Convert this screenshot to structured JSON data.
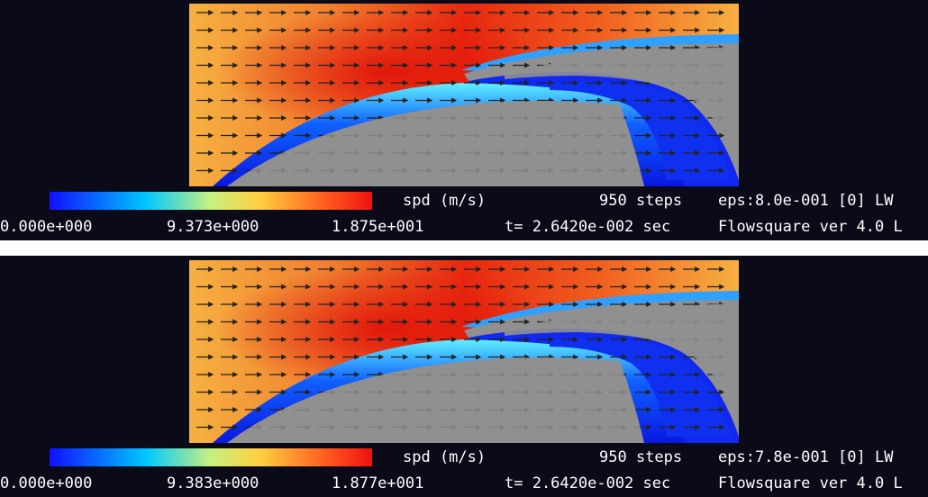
{
  "panels": [
    {
      "variable": "spd (m/s)",
      "colorbar_min": "0.000e+000",
      "colorbar_mid": "9.373e+000",
      "colorbar_max": "1.875e+001",
      "steps": "950 steps",
      "eps": "eps:8.0e-001 [0] LW",
      "time": "t= 2.6420e-002 sec",
      "version": "Flowsquare ver 4.0 L"
    },
    {
      "variable": "spd (m/s)",
      "colorbar_min": "0.000e+000",
      "colorbar_mid": "9.383e+000",
      "colorbar_max": "1.877e+001",
      "steps": "950 steps",
      "eps": "eps:7.8e-001 [0] LW",
      "time": "t= 2.6420e-002 sec",
      "version": "Flowsquare ver 4.0 L"
    }
  ]
}
